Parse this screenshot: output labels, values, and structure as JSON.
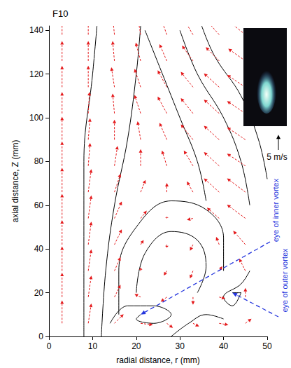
{
  "chart_data": {
    "type": "vector_field",
    "title": "F10",
    "x_label": "radial distance, r (mm)",
    "y_label": "axial distance, Z (mm)",
    "xlim": [
      0,
      50
    ],
    "xticks": [
      0,
      10,
      20,
      30,
      40,
      50
    ],
    "ylim": [
      0,
      142
    ],
    "yticks": [
      0,
      20,
      40,
      60,
      80,
      100,
      120,
      140
    ],
    "grid": false,
    "vectors": {
      "color": "#e41a1c",
      "line_style": "dashed",
      "points": [
        [
          3,
          138,
          0,
          6
        ],
        [
          9,
          138,
          0,
          6
        ],
        [
          15,
          138,
          -0.3,
          6
        ],
        [
          21,
          138,
          -0.5,
          6
        ],
        [
          27,
          138,
          -1,
          5.5
        ],
        [
          33,
          138,
          -1.5,
          5
        ],
        [
          39,
          138,
          -2,
          4.5
        ],
        [
          45,
          138,
          -2.5,
          4
        ],
        [
          3,
          126,
          0,
          6.5
        ],
        [
          9,
          126,
          0,
          6.5
        ],
        [
          15,
          126,
          -0.3,
          6.5
        ],
        [
          21,
          126,
          -0.8,
          6
        ],
        [
          27,
          126,
          -1.2,
          5.5
        ],
        [
          33,
          126,
          -1.8,
          5
        ],
        [
          39,
          126,
          -2.2,
          4.5
        ],
        [
          45,
          126,
          -2.8,
          4
        ],
        [
          3,
          114,
          0,
          7
        ],
        [
          9,
          114,
          0,
          7
        ],
        [
          15,
          114,
          -0.5,
          6.5
        ],
        [
          21,
          114,
          -1,
          6
        ],
        [
          27,
          114,
          -1.5,
          5.5
        ],
        [
          33,
          114,
          -2,
          5
        ],
        [
          39,
          114,
          -2.5,
          4.5
        ],
        [
          45,
          114,
          -3,
          4
        ],
        [
          3,
          102,
          0,
          7
        ],
        [
          9,
          102,
          0.2,
          7
        ],
        [
          15,
          102,
          -0.3,
          6.5
        ],
        [
          21,
          102,
          -1,
          6
        ],
        [
          27,
          102,
          -1.5,
          5.5
        ],
        [
          33,
          102,
          -2,
          5
        ],
        [
          39,
          102,
          -2.5,
          4.5
        ],
        [
          45,
          102,
          -3,
          4
        ],
        [
          3,
          90,
          0,
          7.5
        ],
        [
          9,
          90,
          0.3,
          7
        ],
        [
          15,
          90,
          0,
          6.5
        ],
        [
          21,
          90,
          -0.5,
          6
        ],
        [
          27,
          90,
          -1.2,
          5.5
        ],
        [
          33,
          90,
          -2,
          5
        ],
        [
          39,
          90,
          -2.5,
          4.5
        ],
        [
          45,
          90,
          -3,
          4
        ],
        [
          3,
          78,
          0,
          8
        ],
        [
          9,
          78,
          0.3,
          7.5
        ],
        [
          15,
          78,
          0.5,
          6.5
        ],
        [
          21,
          78,
          0,
          5.5
        ],
        [
          27,
          78,
          -0.8,
          5
        ],
        [
          33,
          78,
          -1.5,
          5
        ],
        [
          39,
          78,
          -2.5,
          4.5
        ],
        [
          45,
          78,
          -3,
          4
        ],
        [
          3,
          66,
          0,
          8
        ],
        [
          9,
          66,
          0.5,
          7.5
        ],
        [
          15,
          66,
          1,
          6
        ],
        [
          21,
          66,
          0.8,
          4
        ],
        [
          27,
          66,
          0,
          3
        ],
        [
          33,
          66,
          -1,
          3.5
        ],
        [
          39,
          66,
          -2.5,
          4.5
        ],
        [
          45,
          66,
          -3,
          4.5
        ],
        [
          3,
          54,
          0,
          8
        ],
        [
          9,
          54,
          0.5,
          7.5
        ],
        [
          15,
          54,
          1.2,
          5.5
        ],
        [
          21,
          54,
          1,
          2.5
        ],
        [
          27,
          54,
          0,
          0.5
        ],
        [
          33,
          54,
          -1,
          -0.5
        ],
        [
          39,
          54,
          -2,
          3.5
        ],
        [
          45,
          54,
          -3,
          4.5
        ],
        [
          3,
          42,
          0,
          8
        ],
        [
          9,
          42,
          0.5,
          7.5
        ],
        [
          15,
          42,
          1.2,
          5
        ],
        [
          21,
          42,
          0.5,
          1.5
        ],
        [
          27,
          42,
          0,
          -1
        ],
        [
          33,
          42,
          -0.5,
          -2
        ],
        [
          39,
          42,
          -0.5,
          2.5
        ],
        [
          45,
          42,
          -2,
          4.5
        ],
        [
          3,
          30,
          0,
          8
        ],
        [
          9,
          30,
          0.5,
          7
        ],
        [
          15,
          30,
          1,
          4.5
        ],
        [
          21,
          30,
          0,
          1
        ],
        [
          27,
          30,
          -0.5,
          -1.5
        ],
        [
          33,
          30,
          -0.5,
          -2.5
        ],
        [
          39,
          30,
          0.5,
          1.5
        ],
        [
          45,
          30,
          -1,
          4
        ],
        [
          3,
          18,
          0,
          8
        ],
        [
          9,
          18,
          0.5,
          7
        ],
        [
          15,
          18,
          1,
          4
        ],
        [
          21,
          18,
          -1,
          1
        ],
        [
          27,
          18,
          -1,
          -1.5
        ],
        [
          33,
          18,
          0,
          -2.5
        ],
        [
          39,
          18,
          1,
          -0.5
        ],
        [
          45,
          18,
          0,
          3
        ],
        [
          3,
          6,
          0,
          7.5
        ],
        [
          9,
          6,
          0.5,
          6.5
        ],
        [
          15,
          6,
          1.5,
          3
        ],
        [
          21,
          6,
          2,
          -0.5
        ],
        [
          27,
          6,
          1,
          -1.5
        ],
        [
          33,
          6,
          1,
          -1
        ],
        [
          39,
          6,
          1.5,
          -0.5
        ],
        [
          45,
          6,
          1,
          1.5
        ]
      ]
    },
    "streamlines": {
      "color": "#000000",
      "lines": [
        [
          [
            46,
            60
          ],
          [
            44,
            80
          ],
          [
            40,
            100
          ],
          [
            34,
            120
          ],
          [
            30,
            140
          ]
        ],
        [
          [
            50,
            72
          ],
          [
            48,
            90
          ],
          [
            44,
            110
          ],
          [
            38,
            128
          ],
          [
            35,
            142
          ]
        ],
        [
          [
            36,
            62
          ],
          [
            34,
            80
          ],
          [
            30,
            100
          ],
          [
            26,
            120
          ],
          [
            22,
            140
          ]
        ],
        [
          [
            12,
            0
          ],
          [
            13,
            30
          ],
          [
            15,
            60
          ],
          [
            18,
            90
          ],
          [
            20,
            120
          ],
          [
            21,
            142
          ]
        ],
        [
          [
            8,
            0
          ],
          [
            8,
            40
          ],
          [
            8,
            80
          ],
          [
            10,
            120
          ],
          [
            11,
            142
          ]
        ],
        [
          [
            16,
            10
          ],
          [
            16,
            30
          ],
          [
            20,
            50
          ],
          [
            28,
            62
          ],
          [
            36,
            58
          ],
          [
            40,
            45
          ],
          [
            40,
            30
          ]
        ],
        [
          [
            20,
            20
          ],
          [
            22,
            38
          ],
          [
            28,
            48
          ],
          [
            34,
            44
          ],
          [
            36,
            32
          ],
          [
            34,
            20
          ]
        ],
        [
          [
            14,
            6
          ],
          [
            18,
            14
          ],
          [
            24,
            14
          ],
          [
            28,
            10
          ],
          [
            24,
            6
          ],
          [
            20,
            8
          ],
          [
            21,
            10
          ]
        ],
        [
          [
            46,
            30
          ],
          [
            44,
            24
          ],
          [
            40,
            18
          ],
          [
            42,
            14
          ],
          [
            44,
            20
          ],
          [
            42,
            20
          ]
        ],
        [
          [
            28,
            0
          ],
          [
            32,
            6
          ],
          [
            36,
            10
          ],
          [
            40,
            8
          ]
        ]
      ]
    },
    "scale_arrow": {
      "value": 5,
      "label": "5 m/s"
    },
    "annotations": {
      "color": "#2233dd",
      "line_style": "dashed",
      "items": [
        {
          "text": "eye of inner vortex",
          "r": 21,
          "z": 10
        },
        {
          "text": "eye of outer vortex",
          "r": 42,
          "z": 20
        }
      ]
    }
  }
}
